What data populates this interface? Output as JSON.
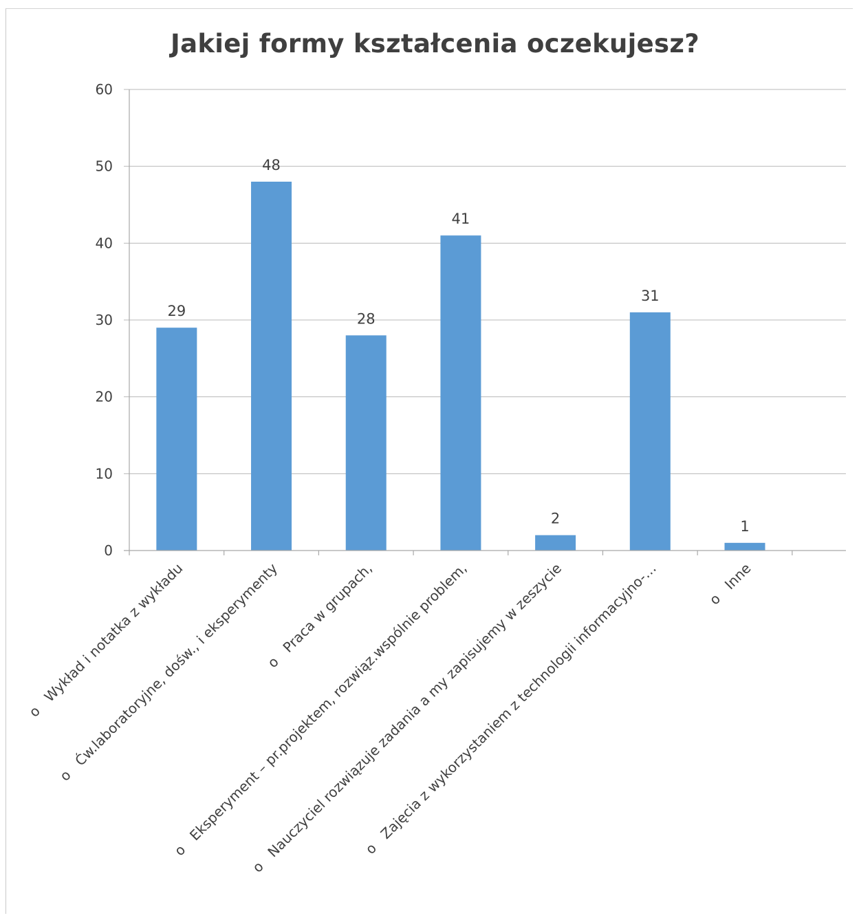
{
  "chart_data": {
    "type": "bar",
    "title": "Jakiej formy kształcenia oczekujesz?",
    "xlabel": "",
    "ylabel": "",
    "ylim": [
      0,
      60
    ],
    "yticks": [
      0,
      10,
      20,
      30,
      40,
      50,
      60
    ],
    "grid": true,
    "legend": "none",
    "bar_color": "#5b9bd5",
    "categories": [
      "o   Wykład i notatka z wykładu",
      "o   Ćw.laboratoryjne, dośw., i eksperymenty",
      "o   Praca w grupach,",
      "o   Eksperyment – pr.projektem, rozwiąz.wspólnie problem,",
      "o   Nauczyciel rozwiązuje zadania a my zapisujemy w zeszycie",
      "o   Zajęcia z wykorzystaniem z technologii informacyjno-…",
      "o   Inne"
    ],
    "values": [
      29,
      48,
      28,
      41,
      2,
      31,
      1
    ]
  }
}
